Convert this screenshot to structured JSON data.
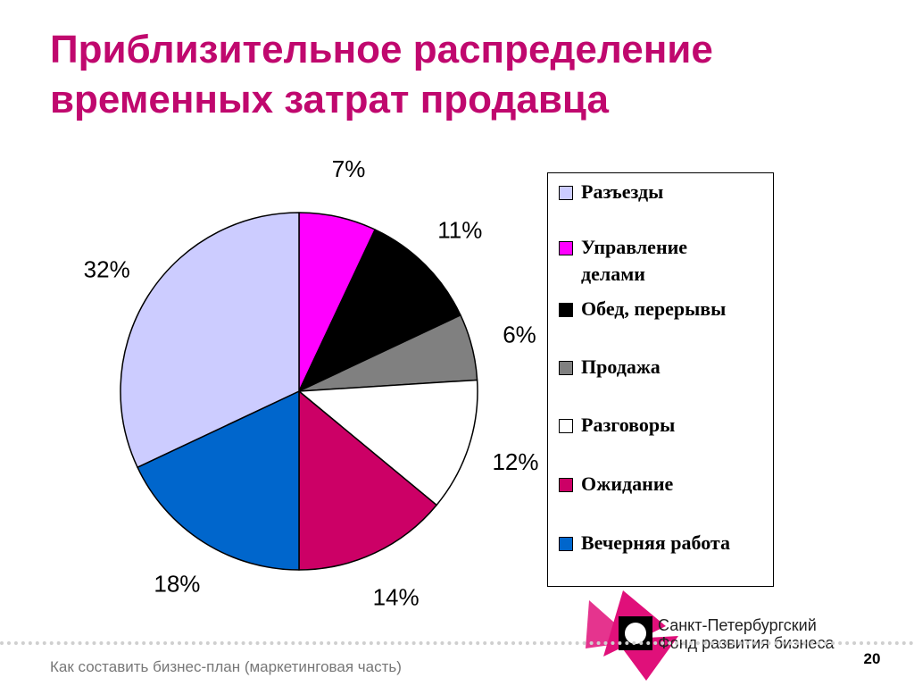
{
  "title": {
    "line1": "Приблизительное распределение",
    "line2": "временных затрат продавца"
  },
  "chart_data": {
    "type": "pie",
    "start": "12 o'clock",
    "direction": "clockwise",
    "legend_position": "right",
    "slices": [
      {
        "name": "Управление делами",
        "value": 7,
        "label": "7%",
        "color": "#ff00ff"
      },
      {
        "name": "Обед, перерывы",
        "value": 11,
        "label": "11%",
        "color": "#000000"
      },
      {
        "name": "Продажа",
        "value": 6,
        "label": "6%",
        "color": "#808080"
      },
      {
        "name": "Разговоры",
        "value": 12,
        "label": "12%",
        "color": "#ffffff"
      },
      {
        "name": "Ожидание",
        "value": 14,
        "label": "14%",
        "color": "#cc0066"
      },
      {
        "name": "Вечерняя работа",
        "value": 18,
        "label": "18%",
        "color": "#0066cc"
      },
      {
        "name": "Разъезды",
        "value": 32,
        "label": "32%",
        "color": "#ccccff"
      }
    ]
  },
  "legend": {
    "items": [
      {
        "label": "Разъезды",
        "color": "#ccccff"
      },
      {
        "label": "Управление делами",
        "color": "#ff00ff"
      },
      {
        "label": "Обед, перерывы",
        "color": "#000000"
      },
      {
        "label": "Продажа",
        "color": "#808080"
      },
      {
        "label": "Разговоры",
        "color": "#ffffff"
      },
      {
        "label": "Ожидание",
        "color": "#cc0066"
      },
      {
        "label": "Вечерняя работа",
        "color": "#0066cc"
      }
    ]
  },
  "footer": {
    "text": "Как составить бизнес-план (маркетинговая часть)",
    "page": "20"
  },
  "org": {
    "line1": "Санкт-Петербургский",
    "line2": "Фонд развития бизнеса"
  },
  "colors": {
    "title": "#c0086e",
    "logo_magenta": "#e0107a",
    "footer_text": "#777777"
  }
}
